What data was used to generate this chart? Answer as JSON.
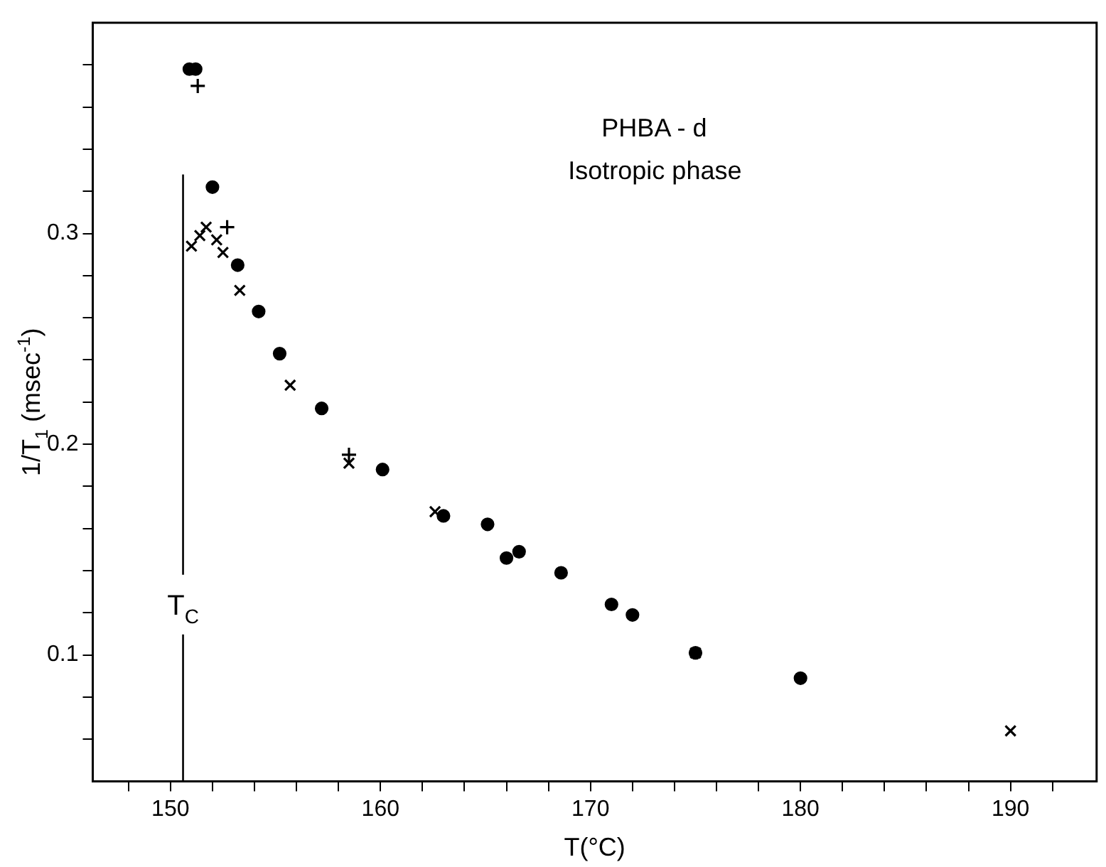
{
  "chart_data": {
    "type": "scatter",
    "xlabel": "T(°C)",
    "ylabel": "1/T$_{1}$ (msec$^{-1}$)",
    "annotations": [
      "PHBA - d",
      "Isotropic phase"
    ],
    "xlim": [
      146.3,
      194.1
    ],
    "xticks": [
      {
        "value": 148,
        "label": null
      },
      150,
      {
        "value": 152,
        "label": null
      },
      {
        "value": 154,
        "label": null
      },
      {
        "value": 156,
        "label": null
      },
      {
        "value": 158,
        "label": null
      },
      160,
      {
        "value": 162,
        "label": null
      },
      {
        "value": 164,
        "label": null
      },
      {
        "value": 166,
        "label": null
      },
      {
        "value": 168,
        "label": null
      },
      170,
      {
        "value": 172,
        "label": null
      },
      {
        "value": 174,
        "label": null
      },
      {
        "value": 176,
        "label": null
      },
      {
        "value": 178,
        "label": null
      },
      180,
      {
        "value": 182,
        "label": null
      },
      {
        "value": 184,
        "label": null
      },
      {
        "value": 186,
        "label": null
      },
      {
        "value": 188,
        "label": null
      },
      190,
      {
        "value": 192,
        "label": null
      }
    ],
    "ylim": [
      0.04,
      0.4
    ],
    "yticks": [
      {
        "value": 0.06,
        "label": null
      },
      {
        "value": 0.08,
        "label": null
      },
      0.1,
      {
        "value": 0.12,
        "label": null
      },
      {
        "value": 0.14,
        "label": null
      },
      {
        "value": 0.16,
        "label": null
      },
      {
        "value": 0.18,
        "label": null
      },
      0.2,
      {
        "value": 0.22,
        "label": null
      },
      {
        "value": 0.24,
        "label": null
      },
      {
        "value": 0.26,
        "label": null
      },
      {
        "value": 0.28,
        "label": null
      },
      0.3,
      {
        "value": 0.32,
        "label": null
      },
      {
        "value": 0.34,
        "label": null
      },
      {
        "value": 0.36,
        "label": null
      },
      {
        "value": 0.38,
        "label": null
      }
    ],
    "grid": false,
    "legend": false,
    "ref_lines": [
      {
        "axis": "x",
        "value": 150.6,
        "label": "T$_{C}$",
        "color": "#000000"
      }
    ],
    "series": [
      {
        "color": "#000000",
        "marker": "circle",
        "x": [
          150.9,
          151.2,
          152.0,
          153.2,
          154.2,
          155.2,
          157.2,
          160.1,
          163.0,
          165.1,
          166.0,
          166.6,
          168.6,
          171.0,
          172.0,
          175.0,
          180.0
        ],
        "values": [
          0.378,
          0.378,
          0.322,
          0.285,
          0.263,
          0.243,
          0.217,
          0.188,
          0.166,
          0.162,
          0.146,
          0.149,
          0.139,
          0.124,
          0.119,
          0.101,
          0.089
        ]
      },
      {
        "color": "#000000",
        "marker": "cross",
        "x": [
          151.0,
          151.4,
          151.7,
          152.2,
          152.5,
          153.3,
          155.7,
          158.5,
          162.6,
          175.0,
          190.0
        ],
        "values": [
          0.294,
          0.299,
          0.303,
          0.297,
          0.291,
          0.273,
          0.228,
          0.191,
          0.168,
          0.101,
          0.064
        ]
      },
      {
        "color": "#000000",
        "marker": "plus",
        "x": [
          151.3,
          152.7,
          158.5
        ],
        "values": [
          0.37,
          0.303,
          0.195
        ]
      }
    ]
  }
}
